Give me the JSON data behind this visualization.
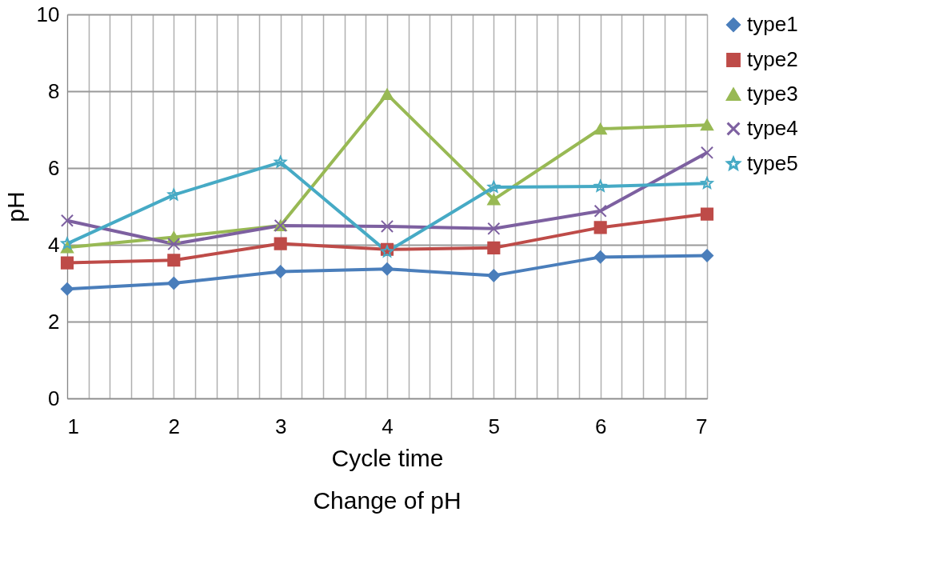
{
  "chart_data": {
    "type": "line",
    "title": "Change of pH",
    "xlabel": "Cycle time",
    "ylabel": "pH",
    "x": [
      1,
      2,
      3,
      4,
      5,
      6,
      7
    ],
    "xlim": [
      1,
      7
    ],
    "xticks": [
      1,
      {
        "value": 1.2,
        "label": null
      },
      {
        "value": 1.4,
        "label": null
      },
      {
        "value": 1.6,
        "label": null
      },
      {
        "value": 1.8,
        "label": null
      },
      2,
      {
        "value": 2.2,
        "label": null
      },
      {
        "value": 2.4,
        "label": null
      },
      {
        "value": 2.6,
        "label": null
      },
      {
        "value": 2.8,
        "label": null
      },
      3,
      {
        "value": 3.2,
        "label": null
      },
      {
        "value": 3.4,
        "label": null
      },
      {
        "value": 3.6,
        "label": null
      },
      {
        "value": 3.8,
        "label": null
      },
      4,
      {
        "value": 4.2,
        "label": null
      },
      {
        "value": 4.4,
        "label": null
      },
      {
        "value": 4.6,
        "label": null
      },
      {
        "value": 4.8,
        "label": null
      },
      5,
      {
        "value": 5.2,
        "label": null
      },
      {
        "value": 5.4,
        "label": null
      },
      {
        "value": 5.6,
        "label": null
      },
      {
        "value": 5.8,
        "label": null
      },
      6,
      {
        "value": 6.2,
        "label": null
      },
      {
        "value": 6.4,
        "label": null
      },
      {
        "value": 6.6,
        "label": null
      },
      {
        "value": 6.8,
        "label": null
      },
      7
    ],
    "ylim": [
      0,
      10
    ],
    "yticks": [
      0,
      2,
      4,
      6,
      8,
      10
    ],
    "grid": true,
    "legend": "right",
    "line_style": "solid",
    "series": [
      {
        "name": "type1",
        "color": "#4a7ebb",
        "marker": "diamond",
        "values": [
          2.85,
          3.0,
          3.3,
          3.37,
          3.2,
          3.68,
          3.72
        ]
      },
      {
        "name": "type2",
        "color": "#be4b48",
        "marker": "square",
        "values": [
          3.53,
          3.6,
          4.03,
          3.88,
          3.92,
          4.45,
          4.8
        ]
      },
      {
        "name": "type3",
        "color": "#98b954",
        "marker": "triangle",
        "values": [
          3.93,
          4.2,
          4.5,
          7.92,
          5.18,
          7.02,
          7.12
        ]
      },
      {
        "name": "type4",
        "color": "#7d60a0",
        "marker": "cross",
        "values": [
          4.63,
          4.02,
          4.5,
          4.48,
          4.42,
          4.88,
          6.4
        ]
      },
      {
        "name": "type5",
        "color": "#46aac5",
        "marker": "star",
        "values": [
          4.03,
          5.3,
          6.15,
          3.82,
          5.5,
          5.52,
          5.6
        ]
      }
    ]
  }
}
